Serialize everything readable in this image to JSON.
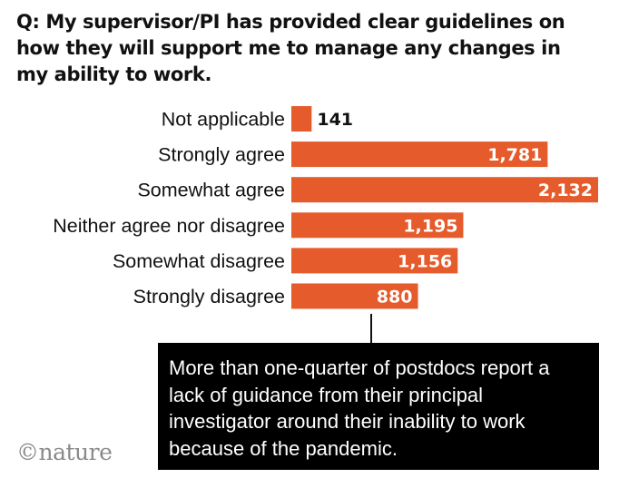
{
  "title": "Q: My supervisor/PI has provided clear guidelines on how they will support me to manage any changes in my ability to work.",
  "callout": "More than one-quarter of postdocs report a lack of guidance from their principal investigator around their inability to work because of the pandemic.",
  "logo": "©nature",
  "colors": {
    "bar": "#e55b2c",
    "text": "#111111",
    "callout_bg": "#000000"
  },
  "chart_data": {
    "type": "bar",
    "orientation": "horizontal",
    "categories": [
      "Not applicable",
      "Strongly agree",
      "Somewhat agree",
      "Neither agree nor disagree",
      "Somewhat disagree",
      "Strongly disagree"
    ],
    "values": [
      141,
      1781,
      2132,
      1195,
      1156,
      880
    ],
    "value_labels": [
      "141",
      "1,781",
      "2,132",
      "1,195",
      "1,156",
      "880"
    ],
    "title": "Q: My supervisor/PI has provided clear guidelines on how they will support me to manage any changes in my ability to work.",
    "xlabel": "",
    "ylabel": "",
    "xlim": [
      0,
      2132
    ],
    "grid": false,
    "legend": "none"
  }
}
